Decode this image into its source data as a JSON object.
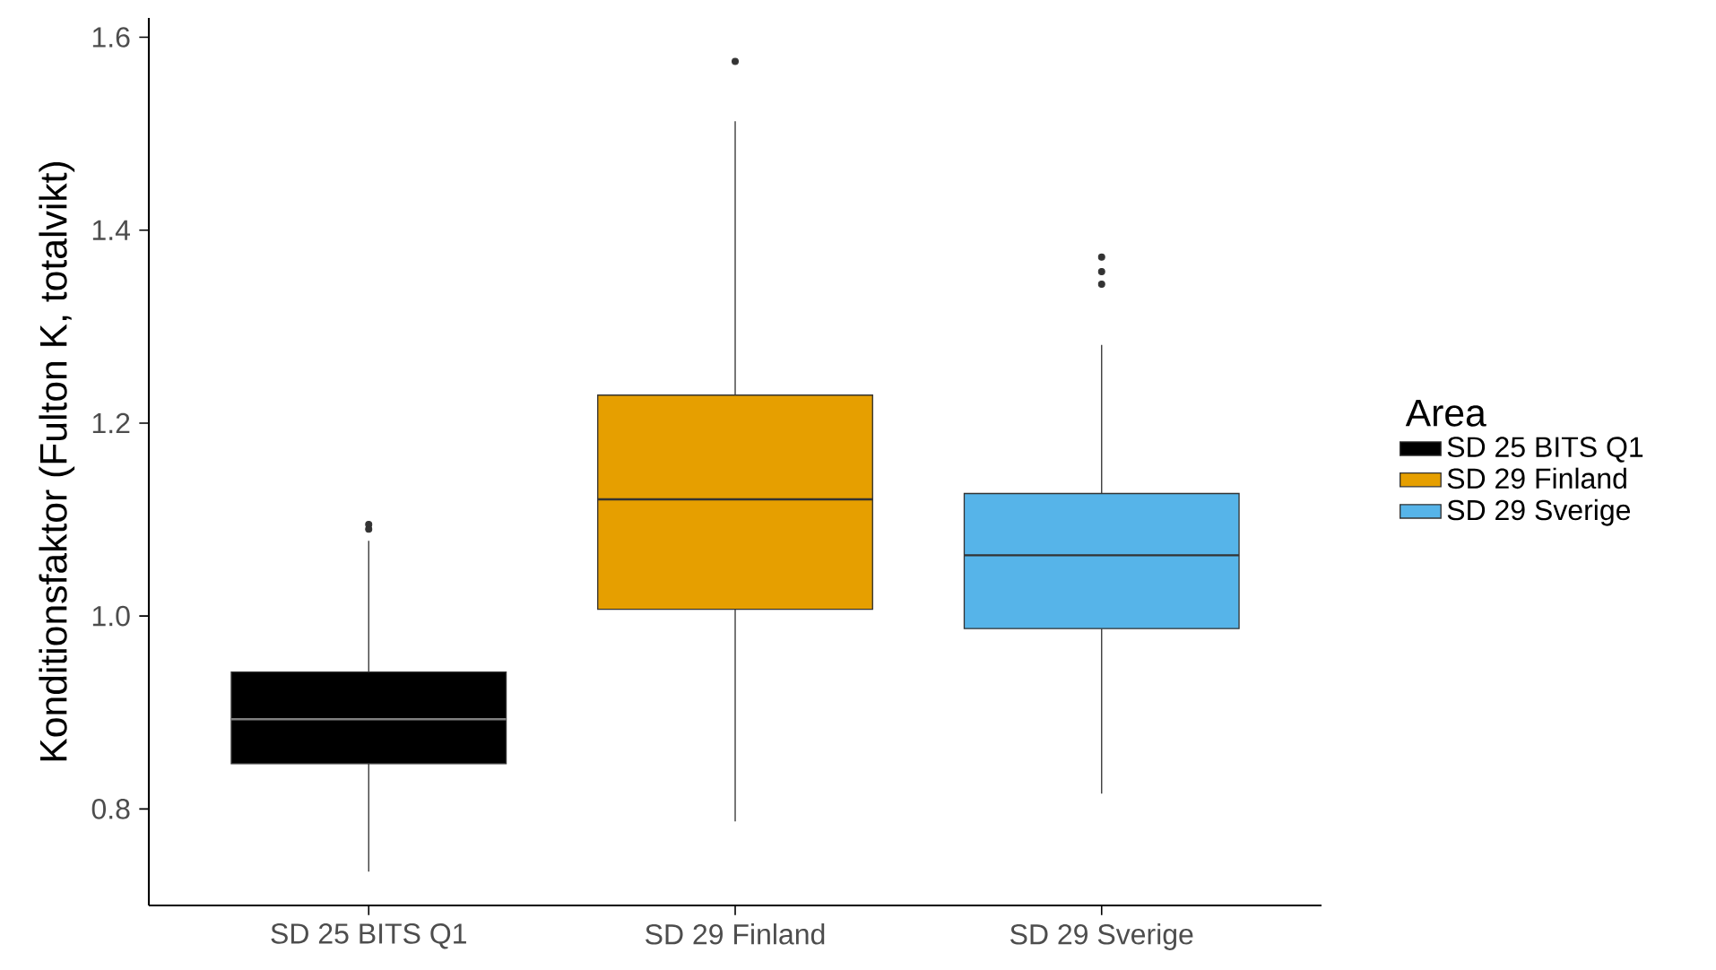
{
  "chart_data": {
    "type": "box",
    "ylabel": "Konditionsfaktor (Fulton K, totalvikt)",
    "legend_title": "Area",
    "legend": "right",
    "categories": [
      "SD 25 BITS Q1",
      "SD 29 Finland",
      "SD 29 Sverige"
    ],
    "series": [
      {
        "name": "SD 25 BITS Q1",
        "color": "#000000",
        "boxes": [
          {
            "low": 0.735,
            "q1": 0.847,
            "median": 0.893,
            "q3": 0.942,
            "high": 1.078,
            "outliers": [
              1.09,
              1.095
            ]
          },
          null,
          null
        ]
      },
      {
        "name": "SD 29 Finland",
        "color": "#e69f00",
        "boxes": [
          null,
          {
            "low": 0.787,
            "q1": 1.007,
            "median": 1.121,
            "q3": 1.229,
            "high": 1.513,
            "outliers": [
              1.575
            ]
          },
          null
        ]
      },
      {
        "name": "SD 29 Sverige",
        "color": "#56b4e9",
        "boxes": [
          null,
          null,
          {
            "low": 0.816,
            "q1": 0.987,
            "median": 1.063,
            "q3": 1.127,
            "high": 1.281,
            "outliers": [
              1.344,
              1.357,
              1.372
            ]
          }
        ]
      }
    ],
    "ylim": [
      0.7,
      1.62
    ],
    "yticks": [
      {
        "value": 0.8,
        "label": "0.8"
      },
      {
        "value": 1.0,
        "label": "1.0"
      },
      {
        "value": 1.2,
        "label": "1.2"
      },
      {
        "value": 1.4,
        "label": "1.4"
      },
      {
        "value": 1.6,
        "label": "1.6"
      }
    ]
  }
}
